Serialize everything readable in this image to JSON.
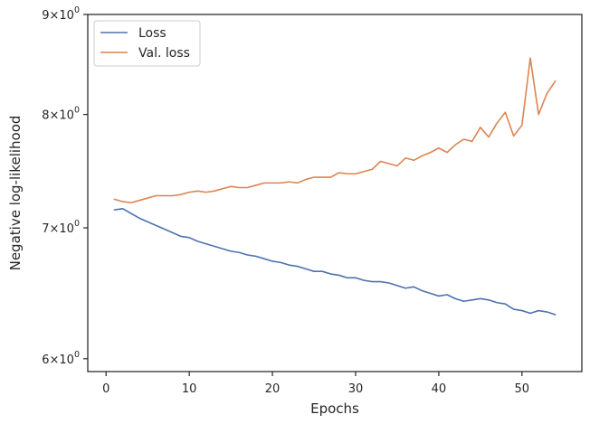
{
  "chart_data": {
    "type": "line",
    "title": "",
    "xlabel": "Epochs",
    "ylabel": "Negative log-likelihood",
    "yscale": "log",
    "xlim": [
      -2.2,
      57.2
    ],
    "ylim": [
      5.91,
      9.0
    ],
    "xticks": [
      0,
      10,
      20,
      30,
      40,
      50
    ],
    "xtick_labels": [
      "0",
      "10",
      "20",
      "30",
      "40",
      "50"
    ],
    "yticks": [
      6,
      7,
      8,
      9
    ],
    "ytick_labels": [
      {
        "base": "6",
        "exp": "0"
      },
      {
        "base": "7",
        "exp": "0"
      },
      {
        "base": "8",
        "exp": "0"
      },
      {
        "base": "9",
        "exp": "0"
      }
    ],
    "tick_prefix": "×10",
    "grid": false,
    "legend_position": "upper-left",
    "x": [
      1,
      2,
      3,
      4,
      5,
      6,
      7,
      8,
      9,
      10,
      11,
      12,
      13,
      14,
      15,
      16,
      17,
      18,
      19,
      20,
      21,
      22,
      23,
      24,
      25,
      26,
      27,
      28,
      29,
      30,
      31,
      32,
      33,
      34,
      35,
      36,
      37,
      38,
      39,
      40,
      41,
      42,
      43,
      44,
      45,
      46,
      47,
      48,
      49,
      50,
      51,
      52,
      53,
      54
    ],
    "series": [
      {
        "name": "Loss",
        "color": "#4c72b0",
        "values": [
          7.15,
          7.16,
          7.12,
          7.08,
          7.05,
          7.02,
          6.99,
          6.96,
          6.93,
          6.92,
          6.89,
          6.87,
          6.85,
          6.83,
          6.81,
          6.8,
          6.78,
          6.77,
          6.75,
          6.73,
          6.72,
          6.7,
          6.69,
          6.67,
          6.65,
          6.65,
          6.63,
          6.62,
          6.6,
          6.6,
          6.58,
          6.57,
          6.57,
          6.56,
          6.54,
          6.52,
          6.53,
          6.5,
          6.48,
          6.46,
          6.47,
          6.44,
          6.42,
          6.43,
          6.44,
          6.43,
          6.41,
          6.4,
          6.36,
          6.35,
          6.33,
          6.35,
          6.34,
          6.32
        ]
      },
      {
        "name": "Val. loss",
        "color": "#dd8452",
        "values": [
          7.24,
          7.22,
          7.21,
          7.23,
          7.25,
          7.27,
          7.27,
          7.27,
          7.28,
          7.3,
          7.31,
          7.3,
          7.31,
          7.33,
          7.35,
          7.34,
          7.34,
          7.36,
          7.38,
          7.38,
          7.38,
          7.39,
          7.38,
          7.41,
          7.43,
          7.43,
          7.43,
          7.47,
          7.46,
          7.46,
          7.48,
          7.5,
          7.57,
          7.55,
          7.53,
          7.6,
          7.58,
          7.62,
          7.65,
          7.69,
          7.65,
          7.72,
          7.77,
          7.75,
          7.88,
          7.79,
          7.92,
          8.02,
          7.8,
          7.9,
          8.55,
          8.0,
          8.2,
          8.32
        ]
      }
    ]
  }
}
